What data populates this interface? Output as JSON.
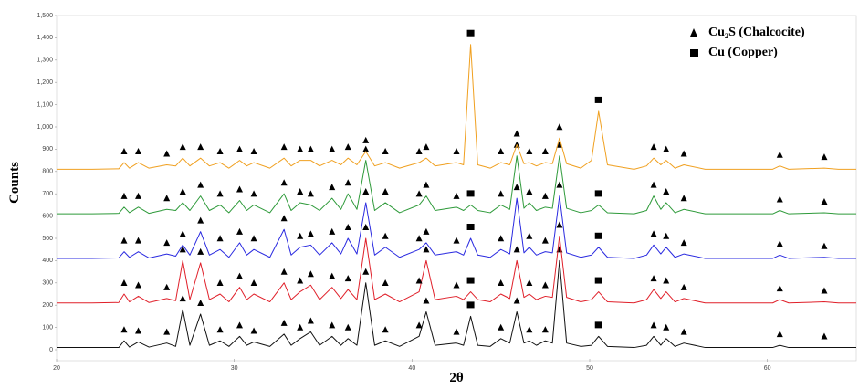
{
  "chart_data": {
    "type": "line",
    "x_label": "2θ",
    "y_label": "Counts",
    "xlim": [
      20,
      65
    ],
    "ylim": [
      0,
      1500
    ],
    "xticks": [
      20,
      30,
      40,
      50,
      60
    ],
    "yticks": [
      0,
      100,
      200,
      300,
      400,
      500,
      600,
      700,
      800,
      900,
      {
        "value": 1000,
        "label": "1,000"
      },
      {
        "value": 1100,
        "label": "1,100"
      },
      {
        "value": 1200,
        "label": "1,200"
      },
      {
        "value": 1300,
        "label": "1,300"
      },
      {
        "value": 1400,
        "label": "1,400"
      },
      {
        "value": 1500,
        "label": "1,500"
      }
    ],
    "legend_position": "upper right",
    "legend": [
      {
        "label": "Cu₂S (Chalcocite)",
        "marker": "triangle",
        "peaks": [
          23.8,
          24.6,
          26.2,
          27.1,
          28.1,
          29.2,
          30.3,
          31.1,
          32.8,
          33.7,
          34.3,
          35.5,
          36.4,
          37.4,
          38.5,
          40.4,
          40.8,
          42.5,
          45.0,
          45.9,
          46.6,
          47.5,
          48.3,
          53.6,
          54.3,
          55.3,
          60.7,
          63.2
        ]
      },
      {
        "label": "Cu (Copper)",
        "marker": "square",
        "peaks": [
          43.3,
          50.5
        ]
      }
    ],
    "x": [
      20,
      22,
      23.5,
      23.8,
      24.1,
      24.6,
      25.2,
      26.2,
      26.7,
      27.1,
      27.5,
      28.1,
      28.6,
      29.2,
      29.7,
      30.3,
      30.7,
      31.1,
      32.0,
      32.8,
      33.2,
      33.7,
      34.3,
      34.8,
      35.5,
      36.0,
      36.4,
      36.9,
      37.4,
      37.9,
      38.5,
      39.3,
      40.4,
      40.8,
      41.3,
      42.5,
      42.9,
      43.3,
      43.7,
      44.4,
      45.0,
      45.5,
      45.9,
      46.3,
      46.6,
      47.0,
      47.5,
      47.9,
      48.3,
      48.7,
      49.5,
      50.1,
      50.5,
      51.0,
      52.5,
      53.2,
      53.6,
      54.0,
      54.3,
      54.8,
      55.3,
      56.5,
      58.5,
      60.3,
      60.7,
      61.2,
      63.2,
      64.0,
      65
    ],
    "series": [
      {
        "color": "#111111",
        "values": [
          10,
          10,
          10,
          40,
          12,
          35,
          12,
          30,
          15,
          180,
          20,
          160,
          20,
          40,
          15,
          60,
          20,
          35,
          15,
          70,
          20,
          50,
          80,
          20,
          60,
          20,
          50,
          20,
          300,
          20,
          40,
          15,
          60,
          170,
          20,
          30,
          20,
          150,
          20,
          15,
          50,
          30,
          170,
          30,
          40,
          20,
          40,
          30,
          400,
          30,
          15,
          20,
          60,
          15,
          10,
          20,
          60,
          20,
          50,
          15,
          30,
          10,
          10,
          10,
          20,
          10,
          10,
          10,
          10
        ]
      },
      {
        "color": "#e0202a",
        "values": [
          210,
          210,
          212,
          250,
          215,
          240,
          212,
          230,
          220,
          400,
          225,
          390,
          225,
          250,
          215,
          280,
          225,
          250,
          215,
          300,
          225,
          260,
          290,
          225,
          280,
          230,
          270,
          225,
          500,
          225,
          250,
          215,
          260,
          400,
          225,
          240,
          225,
          260,
          225,
          215,
          250,
          230,
          400,
          235,
          250,
          225,
          240,
          235,
          510,
          235,
          215,
          225,
          260,
          215,
          210,
          225,
          270,
          230,
          260,
          215,
          230,
          210,
          210,
          210,
          225,
          210,
          215,
          210,
          210
        ]
      },
      {
        "color": "#2a2ae0",
        "values": [
          410,
          410,
          412,
          440,
          415,
          440,
          412,
          430,
          420,
          470,
          425,
          530,
          425,
          450,
          415,
          480,
          425,
          450,
          415,
          540,
          425,
          460,
          470,
          425,
          480,
          430,
          500,
          430,
          660,
          425,
          460,
          415,
          450,
          480,
          425,
          440,
          425,
          500,
          425,
          415,
          450,
          430,
          680,
          435,
          460,
          425,
          440,
          435,
          690,
          435,
          415,
          425,
          460,
          415,
          410,
          425,
          470,
          430,
          460,
          415,
          430,
          410,
          410,
          410,
          425,
          410,
          415,
          410,
          410
        ]
      },
      {
        "color": "#2e9a3a",
        "values": [
          610,
          610,
          612,
          640,
          615,
          640,
          612,
          630,
          625,
          660,
          625,
          690,
          625,
          650,
          615,
          670,
          625,
          650,
          615,
          700,
          625,
          660,
          650,
          625,
          680,
          630,
          700,
          630,
          850,
          625,
          660,
          615,
          650,
          690,
          625,
          640,
          625,
          650,
          625,
          615,
          650,
          630,
          870,
          635,
          660,
          625,
          640,
          635,
          870,
          635,
          615,
          625,
          650,
          615,
          610,
          625,
          690,
          630,
          660,
          615,
          630,
          610,
          610,
          610,
          625,
          610,
          615,
          610,
          610
        ]
      },
      {
        "color": "#f0a020",
        "values": [
          810,
          810,
          812,
          840,
          815,
          840,
          815,
          830,
          825,
          860,
          825,
          860,
          825,
          840,
          815,
          850,
          825,
          840,
          815,
          860,
          825,
          850,
          850,
          825,
          850,
          830,
          860,
          830,
          890,
          825,
          840,
          815,
          840,
          860,
          825,
          840,
          830,
          1370,
          830,
          815,
          840,
          830,
          920,
          835,
          840,
          825,
          840,
          835,
          950,
          835,
          815,
          850,
          1070,
          830,
          810,
          825,
          860,
          830,
          850,
          815,
          830,
          810,
          810,
          810,
          825,
          810,
          815,
          810,
          810
        ]
      }
    ]
  }
}
